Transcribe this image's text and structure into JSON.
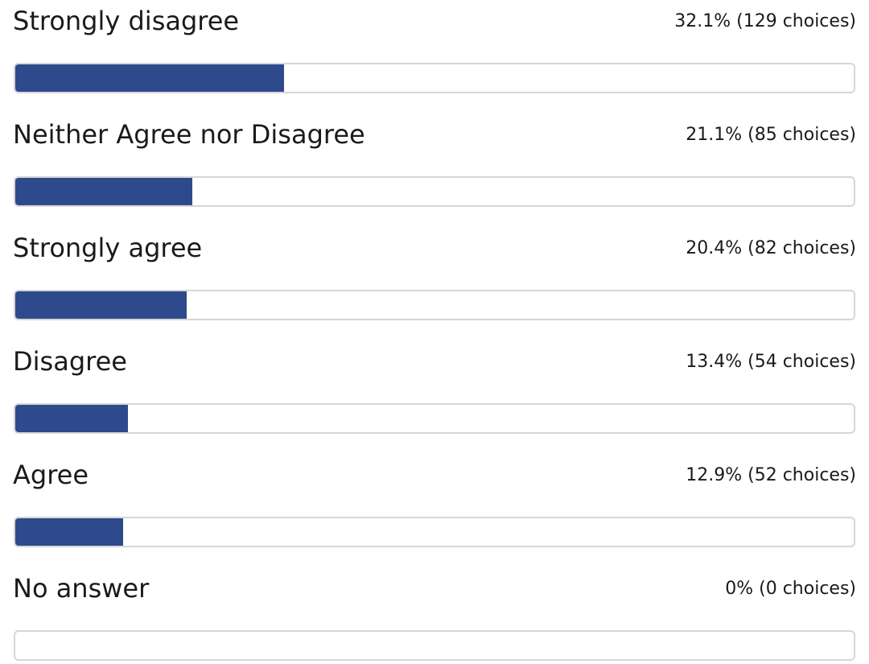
{
  "chart_data": {
    "type": "bar",
    "orientation": "horizontal",
    "grid": false,
    "bar_color": "#2e4a8c",
    "track_border_color": "#d6d6d6",
    "categories": [
      "Strongly disagree",
      "Neither Agree nor Disagree",
      "Strongly agree",
      "Disagree",
      "Agree",
      "No answer"
    ],
    "values": [
      32.1,
      21.1,
      20.4,
      13.4,
      12.9,
      0
    ],
    "xlim": [
      0,
      100
    ],
    "items": [
      {
        "label": "Strongly disagree",
        "percent": 32.1,
        "stats": "32.1% (129 choices)"
      },
      {
        "label": "Neither Agree nor Disagree",
        "percent": 21.1,
        "stats": "21.1% (85 choices)"
      },
      {
        "label": "Strongly agree",
        "percent": 20.4,
        "stats": "20.4% (82 choices)"
      },
      {
        "label": "Disagree",
        "percent": 13.4,
        "stats": "13.4% (54 choices)"
      },
      {
        "label": "Agree",
        "percent": 12.9,
        "stats": "12.9% (52 choices)"
      },
      {
        "label": "No answer",
        "percent": 0,
        "stats": "0% (0 choices)"
      }
    ]
  }
}
